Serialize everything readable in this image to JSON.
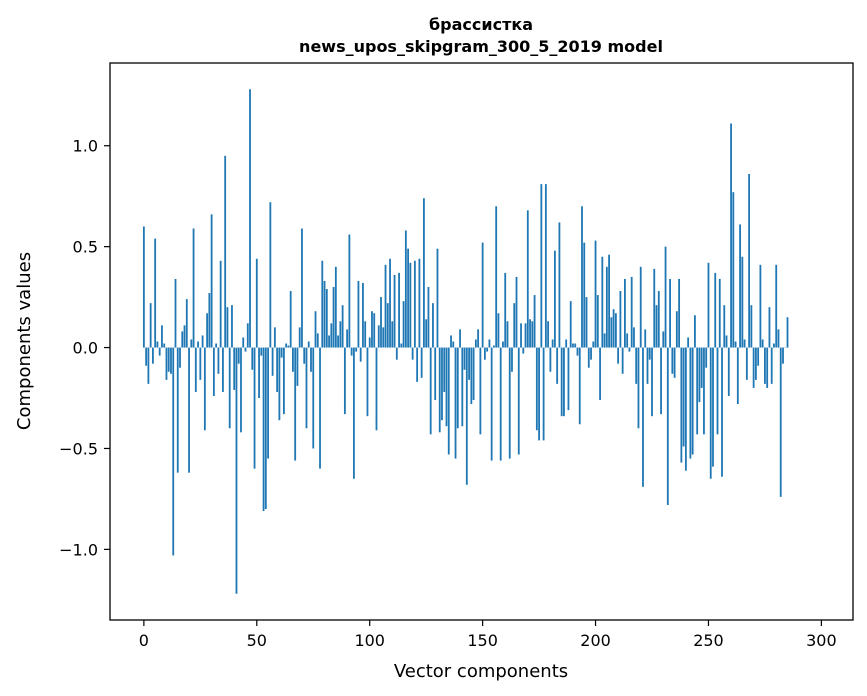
{
  "chart_data": {
    "type": "bar",
    "title_line1": "брассистка",
    "title_line2": "news_upos_skipgram_300_5_2019 model",
    "xlabel": "Vector components",
    "ylabel": "Components values",
    "xlim": [
      -15,
      314
    ],
    "ylim": [
      -1.35,
      1.41
    ],
    "xticks": [
      {
        "value": 0,
        "label": "0"
      },
      {
        "value": 50,
        "label": "50"
      },
      {
        "value": 100,
        "label": "100"
      },
      {
        "value": 150,
        "label": "150"
      },
      {
        "value": 200,
        "label": "200"
      },
      {
        "value": 250,
        "label": "250"
      },
      {
        "value": 300,
        "label": "300"
      }
    ],
    "yticks": [
      {
        "value": -1.0,
        "label": "−1.0"
      },
      {
        "value": -0.5,
        "label": "−0.5"
      },
      {
        "value": 0.0,
        "label": "0.0"
      },
      {
        "value": 0.5,
        "label": "0.5"
      },
      {
        "value": 1.0,
        "label": "1.0"
      }
    ],
    "bar_color": "#1f77b4",
    "grid": false,
    "values": [
      0.6,
      -0.09,
      -0.18,
      0.22,
      -0.08,
      0.54,
      0.03,
      -0.04,
      0.11,
      0.02,
      -0.16,
      -0.12,
      -0.13,
      -1.03,
      0.34,
      -0.62,
      -0.1,
      0.08,
      0.11,
      0.24,
      -0.62,
      0.04,
      0.59,
      -0.22,
      0.03,
      -0.16,
      0.06,
      -0.41,
      0.17,
      0.27,
      0.66,
      -0.24,
      0.02,
      -0.13,
      0.43,
      -0.22,
      0.95,
      0.2,
      -0.4,
      0.21,
      -0.21,
      -1.22,
      -0.08,
      -0.42,
      0.05,
      -0.02,
      0.12,
      1.28,
      -0.11,
      -0.6,
      0.44,
      -0.25,
      -0.04,
      -0.81,
      -0.8,
      -0.55,
      0.72,
      -0.14,
      0.1,
      -0.22,
      -0.36,
      -0.05,
      -0.33,
      0.02,
      0.01,
      0.28,
      -0.12,
      -0.56,
      -0.19,
      0.1,
      0.59,
      -0.08,
      -0.4,
      0.03,
      -0.12,
      -0.5,
      0.18,
      0.07,
      -0.6,
      0.43,
      0.33,
      0.29,
      0.06,
      0.12,
      0.3,
      0.4,
      0.06,
      0.13,
      0.21,
      -0.33,
      0.09,
      0.56,
      -0.04,
      -0.65,
      -0.02,
      0.33,
      -0.07,
      0.32,
      0.13,
      -0.34,
      0.05,
      0.18,
      0.17,
      -0.41,
      0.11,
      0.25,
      0.1,
      0.41,
      0.22,
      0.44,
      0.13,
      0.36,
      -0.06,
      0.37,
      0.02,
      0.23,
      0.58,
      0.49,
      0.42,
      -0.06,
      0.43,
      -0.17,
      0.44,
      -0.15,
      0.74,
      0.14,
      0.3,
      -0.43,
      0.22,
      -0.26,
      0.49,
      -0.42,
      -0.36,
      -0.22,
      -0.39,
      -0.53,
      0.06,
      0.03,
      -0.55,
      -0.4,
      0.09,
      -0.39,
      -0.11,
      -0.68,
      -0.16,
      -0.28,
      -0.26,
      0.04,
      0.09,
      -0.43,
      0.52,
      -0.06,
      -0.02,
      0.04,
      -0.56,
      0.01,
      0.7,
      0.17,
      -0.56,
      0.03,
      0.37,
      0.13,
      -0.55,
      -0.12,
      0.22,
      0.35,
      -0.53,
      0.12,
      -0.03,
      0.12,
      0.68,
      0.14,
      0.13,
      0.26,
      -0.41,
      -0.46,
      0.81,
      -0.46,
      0.81,
      0.13,
      -0.12,
      0.04,
      0.48,
      -0.18,
      0.62,
      -0.34,
      -0.34,
      0.04,
      -0.31,
      0.23,
      0.02,
      0.02,
      -0.04,
      -0.38,
      0.7,
      0.52,
      0.25,
      -0.1,
      -0.06,
      0.03,
      0.53,
      0.26,
      -0.26,
      0.45,
      0.07,
      0.4,
      0.46,
      0.15,
      0.19,
      0.17,
      -0.08,
      0.28,
      -0.13,
      0.34,
      0.07,
      -0.02,
      0.35,
      0.1,
      -0.18,
      -0.4,
      0.4,
      -0.69,
      0.09,
      -0.18,
      -0.06,
      -0.34,
      0.39,
      0.21,
      0.28,
      -0.33,
      0.08,
      0.5,
      -0.78,
      0.34,
      -0.13,
      -0.15,
      0.18,
      0.34,
      -0.57,
      -0.49,
      -0.61,
      0.05,
      -0.55,
      -0.53,
      0.16,
      -0.43,
      -0.27,
      -0.2,
      -0.43,
      -0.1,
      0.42,
      -0.65,
      -0.59,
      0.37,
      -0.43,
      0.34,
      -0.64,
      0.21,
      0.06,
      -0.24,
      1.11,
      0.77,
      0.03,
      -0.28,
      0.61,
      0.45,
      0.04,
      -0.16,
      0.86,
      0.21,
      -0.2,
      -0.16,
      -0.09,
      0.41,
      0.04,
      -0.18,
      -0.2,
      0.2,
      -0.18,
      0.02,
      0.41,
      0.09,
      -0.74,
      -0.08,
      0.0,
      0.15
    ]
  }
}
